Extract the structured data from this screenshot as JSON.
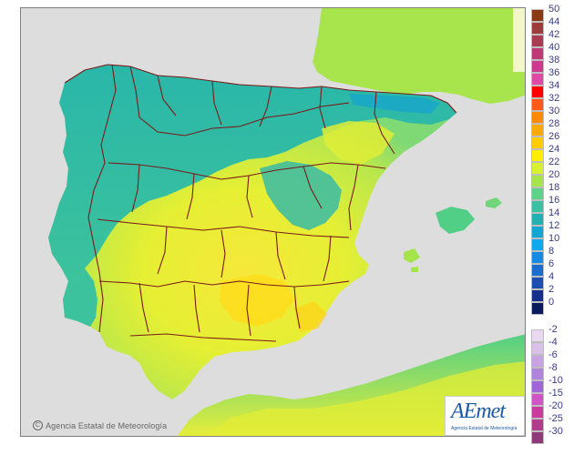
{
  "credit": {
    "symbol": "C",
    "text": "Agencia Estatal de Meteorología"
  },
  "logo": {
    "brand": "AEmet",
    "subtitle": "Agencia Estatal de Meteorología"
  },
  "legend": {
    "positive": [
      {
        "label": "50",
        "color": "#8a3a12"
      },
      {
        "label": "44",
        "color": "#9e3b3b"
      },
      {
        "label": "42",
        "color": "#a93c52"
      },
      {
        "label": "40",
        "color": "#bd3a74"
      },
      {
        "label": "38",
        "color": "#cc3a8d"
      },
      {
        "label": "36",
        "color": "#e04aa5"
      },
      {
        "label": "34",
        "color": "#ff0000"
      },
      {
        "label": "32",
        "color": "#ff5a1a"
      },
      {
        "label": "30",
        "color": "#ff8a00"
      },
      {
        "label": "28",
        "color": "#ffaa00"
      },
      {
        "label": "26",
        "color": "#ffcc00"
      },
      {
        "label": "24",
        "color": "#ffee00"
      },
      {
        "label": "22",
        "color": "#d8f030"
      },
      {
        "label": "20",
        "color": "#a5e44a"
      },
      {
        "label": "18",
        "color": "#5fd28a"
      },
      {
        "label": "16",
        "color": "#3cc0a2"
      },
      {
        "label": "14",
        "color": "#22b0b0"
      },
      {
        "label": "12",
        "color": "#13a6d2"
      },
      {
        "label": "10",
        "color": "#0fa9ee"
      },
      {
        "label": "8",
        "color": "#168ae2"
      },
      {
        "label": "6",
        "color": "#1a6dcc"
      },
      {
        "label": "4",
        "color": "#1a4fb0"
      },
      {
        "label": "2",
        "color": "#14308c"
      },
      {
        "label": "0",
        "color": "#0a1a5c"
      }
    ],
    "negative": [
      {
        "label": "-2",
        "color": "#e9d8ef"
      },
      {
        "label": "-4",
        "color": "#d9c0e8"
      },
      {
        "label": "-6",
        "color": "#c7a3e3"
      },
      {
        "label": "-8",
        "color": "#b184dc"
      },
      {
        "label": "-10",
        "color": "#a066d8"
      },
      {
        "label": "-15",
        "color": "#d154c7"
      },
      {
        "label": "-20",
        "color": "#c93c9e"
      },
      {
        "label": "-25",
        "color": "#b03c8c"
      },
      {
        "label": "-30",
        "color": "#8e3a7a"
      }
    ]
  }
}
